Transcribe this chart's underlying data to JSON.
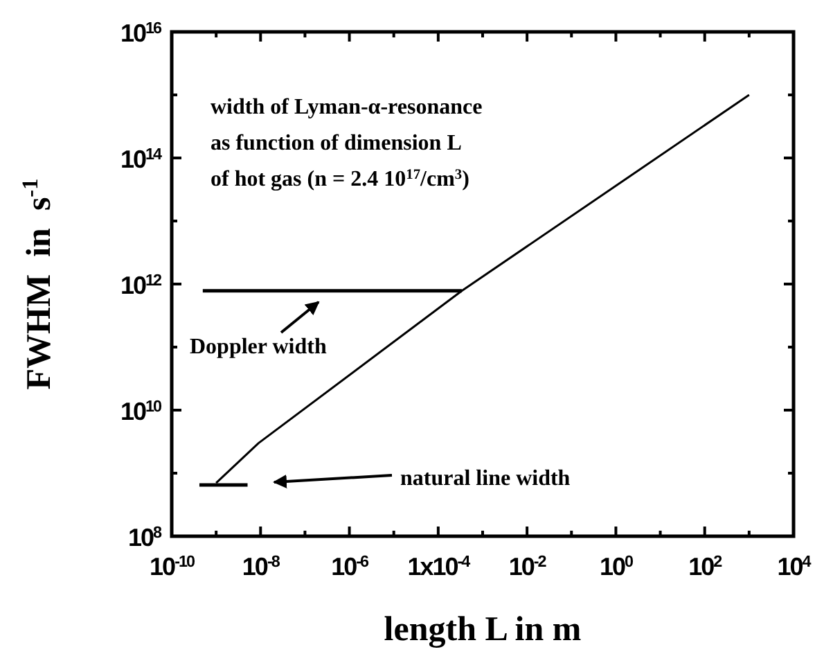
{
  "chart_data": {
    "type": "line",
    "xlabel": "length L in m",
    "ylabel": "FWHM  in  s$^{-1}$",
    "log": "xy",
    "line_style": "solid",
    "marker": "none",
    "grid": false,
    "xlim": [
      1e-10,
      10000
    ],
    "ylim": [
      100000000.0,
      1e+16
    ],
    "xticks": [
      {
        "value": 1e-10,
        "label": "10$^{-10}$"
      },
      {
        "value": 1e-09,
        "label": null
      },
      {
        "value": 1e-08,
        "label": "10$^{-8}$"
      },
      {
        "value": 1e-07,
        "label": null
      },
      {
        "value": 1e-06,
        "label": "10$^{-6}$"
      },
      {
        "value": 1e-05,
        "label": null
      },
      {
        "value": 0.0001,
        "label": "1x10$^{-4}$"
      },
      {
        "value": 0.001,
        "label": null
      },
      {
        "value": 0.01,
        "label": "10$^{-2}$"
      },
      {
        "value": 0.1,
        "label": null
      },
      {
        "value": 1,
        "label": "10$^{0}$"
      },
      {
        "value": 10,
        "label": null
      },
      {
        "value": 100,
        "label": "10$^{2}$"
      },
      {
        "value": 1000,
        "label": null
      },
      {
        "value": 10000,
        "label": "10$^{4}$"
      }
    ],
    "yticks": [
      {
        "value": 100000000.0,
        "label": "10$^{8}$"
      },
      {
        "value": 1000000000.0,
        "label": null
      },
      {
        "value": 10000000000.0,
        "label": "10$^{10}$"
      },
      {
        "value": 100000000000.0,
        "label": null
      },
      {
        "value": 1000000000000.0,
        "label": "10$^{12}$"
      },
      {
        "value": 10000000000000.0,
        "label": null
      },
      {
        "value": 100000000000000.0,
        "label": "10$^{14}$"
      },
      {
        "value": 1000000000000000.0,
        "label": null
      },
      {
        "value": 1e+16,
        "label": "10$^{16}$"
      }
    ],
    "series": [
      {
        "color": "#000000",
        "x": [
          1e-09,
          9e-09,
          0.00034,
          1000
        ],
        "values": [
          700000000.0,
          3000000000.0,
          780000000000.0,
          1000000000000000.0
        ]
      },
      {
        "color": "#000000",
        "x": [
          5e-10,
          0.00034
        ],
        "values": [
          780000000000.0,
          780000000000.0
        ]
      },
      {
        "color": "#000000",
        "x": [
          4.2e-10,
          5.1e-09
        ],
        "values": [
          650000000.0,
          650000000.0
        ]
      }
    ],
    "annotations": [
      "width of Lyman-α-resonance",
      "as function of dimension L",
      "of hot gas (n = 2.4 10$^{17}$/cm$^{3}$)",
      "Doppler width",
      "natural line width"
    ]
  }
}
